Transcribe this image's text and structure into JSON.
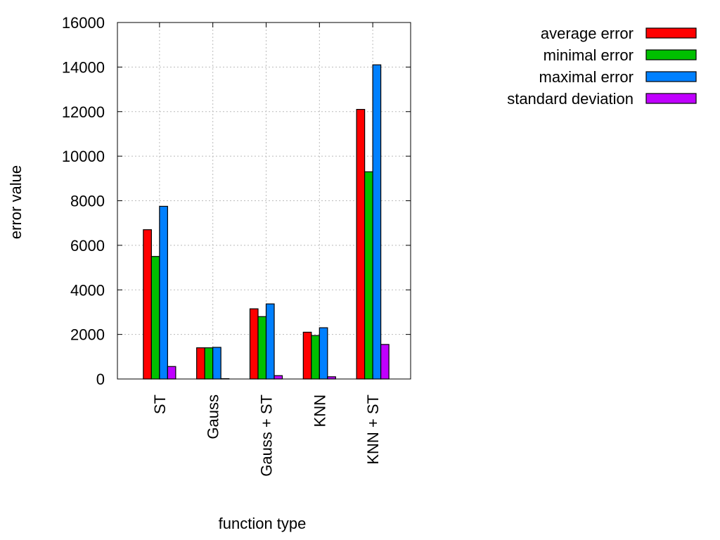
{
  "chart_data": {
    "type": "bar",
    "xlabel": "function type",
    "ylabel": "error value",
    "ylim": [
      0,
      16000
    ],
    "yticks": [
      0,
      2000,
      4000,
      6000,
      8000,
      10000,
      12000,
      14000,
      16000
    ],
    "grid": true,
    "legend_position": "top-right outside",
    "categories": [
      "ST",
      "Gauss",
      "Gauss + ST",
      "KNN",
      "KNN + ST"
    ],
    "series": [
      {
        "name": "average error",
        "color": "#ff0000",
        "values": [
          6700,
          1400,
          3150,
          2100,
          12100
        ]
      },
      {
        "name": "minimal error",
        "color": "#00c000",
        "values": [
          5500,
          1400,
          2800,
          1950,
          9300
        ]
      },
      {
        "name": "maximal error",
        "color": "#0080ff",
        "values": [
          7750,
          1420,
          3370,
          2300,
          14100
        ]
      },
      {
        "name": "standard deviation",
        "color": "#c000ff",
        "values": [
          560,
          15,
          150,
          100,
          1550
        ]
      }
    ]
  }
}
